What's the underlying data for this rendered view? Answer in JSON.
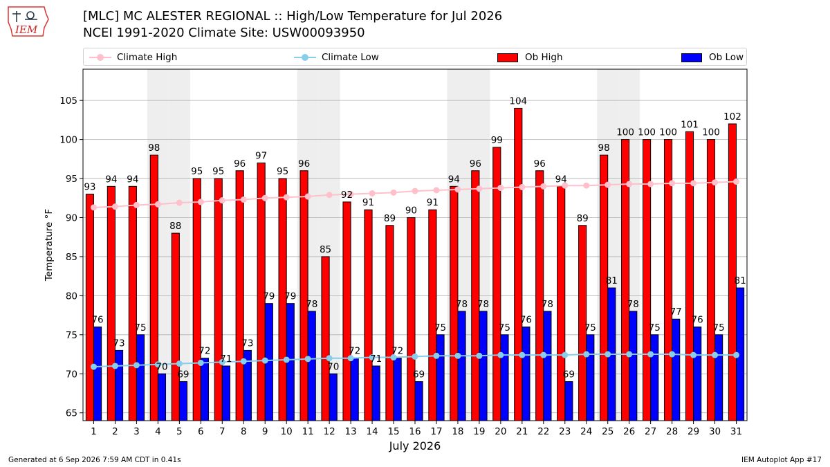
{
  "header": {
    "title_line1": "[MLC] MC ALESTER REGIONAL :: High/Low Temperature for Jul 2026",
    "title_line2": "NCEI 1991-2020 Climate Site: USW00093950"
  },
  "logo": {
    "text": "IEM",
    "icon": "iem-iowa-logo"
  },
  "footer": {
    "left": "Generated at 6 Sep 2026 7:59 AM CDT in 0.41s",
    "right": "IEM Autoplot App #17"
  },
  "colors": {
    "ob_high": "#ff0000",
    "ob_low": "#0000ff",
    "climate_high": "#ffc0cb",
    "climate_low": "#87ceeb",
    "weekend_shade": "#eeeeee",
    "grid": "#b0b0b0"
  },
  "chart_data": {
    "type": "bar",
    "xlabel": "July 2026",
    "ylabel": "Temperature °F",
    "ylim": [
      64,
      109
    ],
    "yticks": [
      65,
      70,
      75,
      80,
      85,
      90,
      95,
      100,
      105
    ],
    "grid": "horizontal",
    "legend_position": "top",
    "categories": [
      "1",
      "2",
      "3",
      "4",
      "5",
      "6",
      "7",
      "8",
      "9",
      "10",
      "11",
      "12",
      "13",
      "14",
      "15",
      "16",
      "17",
      "18",
      "19",
      "20",
      "21",
      "22",
      "23",
      "24",
      "25",
      "26",
      "27",
      "28",
      "29",
      "30",
      "31"
    ],
    "shaded_days": [
      4,
      5,
      11,
      12,
      18,
      19,
      25,
      26
    ],
    "series": [
      {
        "name": "Ob High",
        "kind": "bar",
        "values": [
          93,
          94,
          94,
          98,
          88,
          95,
          95,
          96,
          97,
          95,
          96,
          85,
          92,
          91,
          89,
          90,
          91,
          94,
          96,
          99,
          104,
          96,
          94,
          89,
          98,
          100,
          100,
          100,
          101,
          100,
          102
        ]
      },
      {
        "name": "Ob Low",
        "kind": "bar",
        "values": [
          76,
          73,
          75,
          70,
          69,
          72,
          71,
          73,
          79,
          79,
          78,
          70,
          72,
          71,
          72,
          69,
          75,
          78,
          78,
          75,
          76,
          78,
          69,
          75,
          81,
          78,
          75,
          77,
          76,
          75,
          81
        ]
      },
      {
        "name": "Climate High",
        "kind": "line",
        "values": [
          91.3,
          91.4,
          91.6,
          91.7,
          91.9,
          92.0,
          92.2,
          92.3,
          92.5,
          92.6,
          92.7,
          92.9,
          93.0,
          93.1,
          93.2,
          93.4,
          93.5,
          93.6,
          93.7,
          93.8,
          93.9,
          94.0,
          94.1,
          94.1,
          94.2,
          94.3,
          94.3,
          94.4,
          94.4,
          94.5,
          94.6
        ]
      },
      {
        "name": "Climate Low",
        "kind": "line",
        "values": [
          70.9,
          71.0,
          71.1,
          71.2,
          71.3,
          71.4,
          71.5,
          71.6,
          71.7,
          71.8,
          71.9,
          72.0,
          72.0,
          72.1,
          72.1,
          72.2,
          72.3,
          72.3,
          72.3,
          72.4,
          72.4,
          72.4,
          72.4,
          72.5,
          72.5,
          72.5,
          72.5,
          72.5,
          72.4,
          72.4,
          72.4
        ]
      }
    ]
  }
}
